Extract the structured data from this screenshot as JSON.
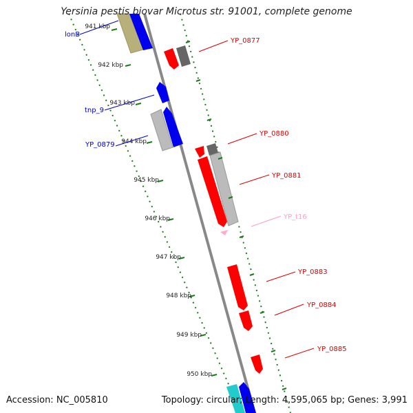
{
  "title": "Yersinia pestis biovar Microtus str. 91001, complete genome",
  "footer": {
    "accession": "Accession: NC_005810",
    "summary": "Topology: circular; Length: 4,595,065 bp; Genes: 3,991"
  },
  "colors": {
    "backbone": "#888888",
    "tick": "#1a7a1a",
    "forward_label": "#0000cc",
    "reverse_label": "#dd0000",
    "trna_label": "#ff99cc",
    "feature_red": "#ff0000",
    "feature_blue": "#0000ee",
    "feature_gray_dark": "#666666",
    "feature_gray_light": "#bbbbbb",
    "feature_olive": "#b8b07a",
    "feature_cyan": "#22cccc",
    "feature_pink": "#ffaacc"
  },
  "kbp_ticks": [
    {
      "label": "941 kbp"
    },
    {
      "label": "942 kbp"
    },
    {
      "label": "943 kbp"
    },
    {
      "label": "944 kbp"
    },
    {
      "label": "945 kbp"
    },
    {
      "label": "946 kbp"
    },
    {
      "label": "947 kbp"
    },
    {
      "label": "948 kbp"
    },
    {
      "label": "949 kbp"
    },
    {
      "label": "950 kbp"
    }
  ],
  "gene_labels": [
    {
      "text": "lonB",
      "strand": "forward"
    },
    {
      "text": "tnp_9",
      "strand": "forward"
    },
    {
      "text": "YP_0879",
      "strand": "forward"
    },
    {
      "text": "YP_0877",
      "strand": "reverse"
    },
    {
      "text": "YP_0880",
      "strand": "reverse"
    },
    {
      "text": "YP_0881",
      "strand": "reverse"
    },
    {
      "text": "YP_t16",
      "strand": "trna"
    },
    {
      "text": "YP_0883",
      "strand": "reverse"
    },
    {
      "text": "YP_0884",
      "strand": "reverse"
    },
    {
      "text": "YP_0885",
      "strand": "reverse"
    }
  ]
}
